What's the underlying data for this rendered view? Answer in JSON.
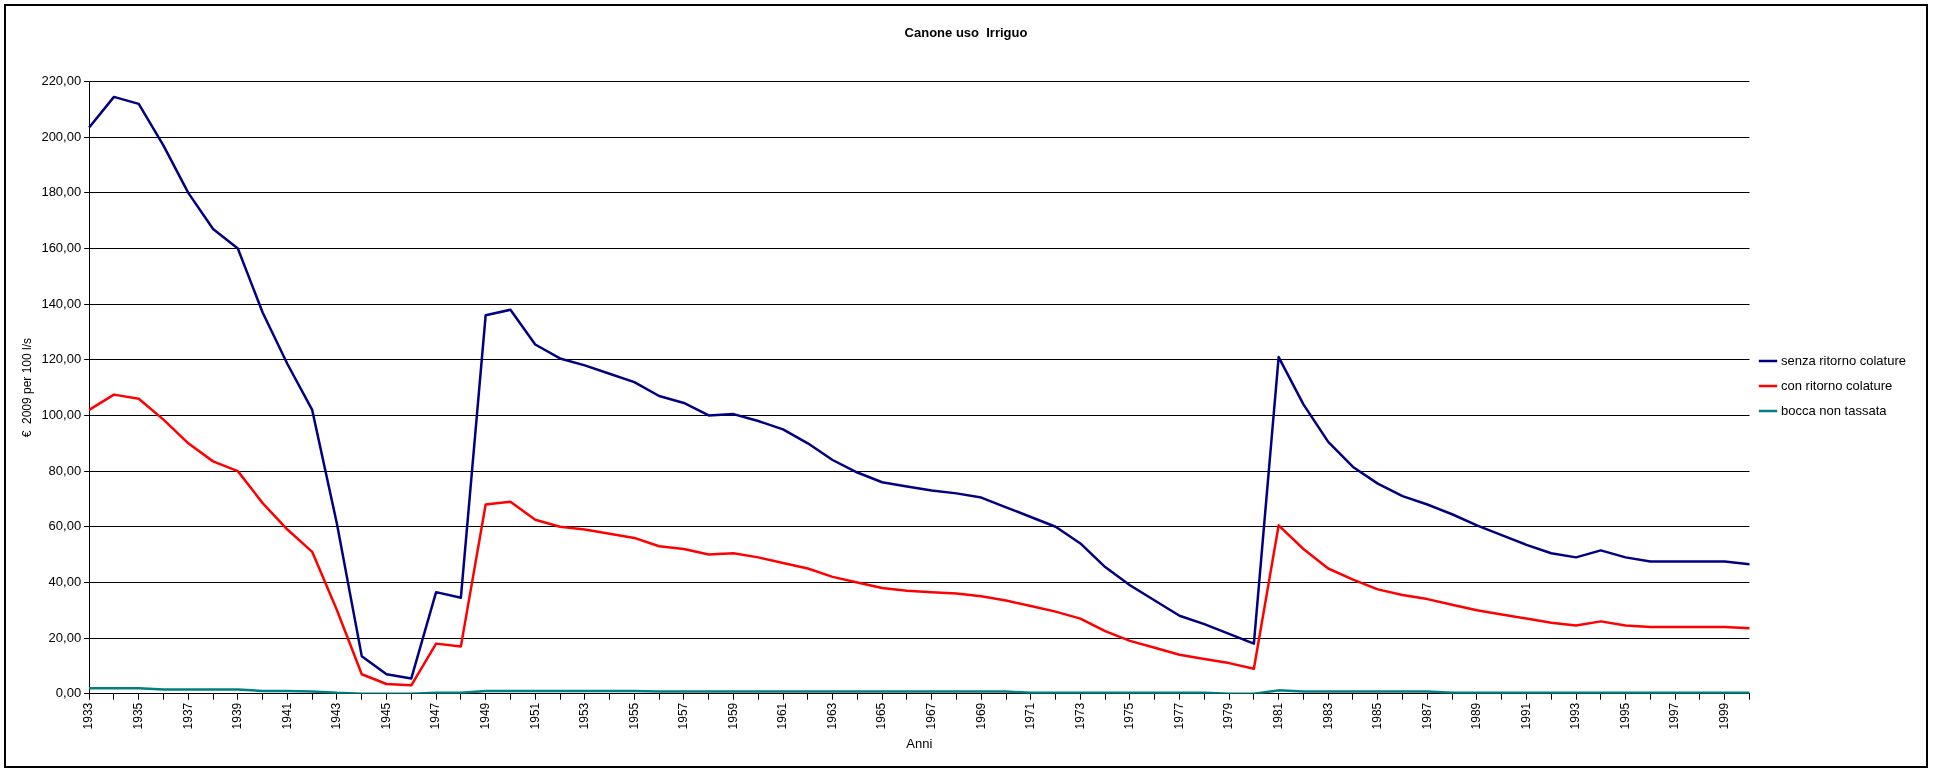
{
  "chart_data": {
    "type": "line",
    "title": "Canone uso  Irriguo",
    "xlabel": "Anni",
    "ylabel": "€  2009 per 100 l/s",
    "categories": [
      "1933",
      null,
      "1935",
      null,
      "1937",
      null,
      "1939",
      null,
      "1941",
      null,
      "1943",
      null,
      "1945",
      null,
      "1947",
      null,
      "1949",
      null,
      "1951",
      null,
      "1953",
      null,
      "1955",
      null,
      "1957",
      null,
      "1959",
      null,
      "1961",
      null,
      "1963",
      null,
      "1965",
      null,
      "1967",
      null,
      "1969",
      null,
      "1971",
      null,
      "1973",
      null,
      "1975",
      null,
      "1977",
      null,
      "1979",
      null,
      "1981",
      null,
      "1983",
      null,
      "1985",
      null,
      "1987",
      null,
      "1989",
      null,
      "1991",
      null,
      "1993",
      null,
      "1995",
      null,
      "1997",
      null,
      "1999",
      null
    ],
    "series": [
      {
        "name": "senza ritorno colature",
        "color": "#000080",
        "values": [
          203.5,
          214.5,
          212,
          197,
          180,
          167,
          160,
          137,
          118.5,
          102,
          61,
          13.5,
          7,
          5.5,
          36.5,
          34.5,
          136,
          138,
          125.5,
          120.5,
          118,
          115,
          112,
          107,
          104.5,
          100,
          100.5,
          98,
          95,
          90,
          84,
          79.5,
          76,
          74.5,
          73,
          72,
          70.5,
          67,
          63.5,
          60,
          54,
          45.5,
          39,
          33.5,
          28,
          25,
          21.5,
          18,
          121,
          104,
          90.5,
          81.5,
          75.5,
          71,
          68,
          64.5,
          60.5,
          57,
          53.5,
          50.5,
          49,
          51.5,
          49,
          47.5,
          47.5,
          47.5,
          47.5,
          46.5
        ]
      },
      {
        "name": "con ritorno colature",
        "color": "#ff0000",
        "values": [
          102,
          107.5,
          106,
          98.5,
          90,
          83.5,
          80,
          68.5,
          59,
          51,
          30,
          7,
          3.5,
          3,
          18,
          17,
          68,
          69,
          62.5,
          60,
          59,
          57.5,
          56,
          53,
          52,
          50,
          50.5,
          49,
          47,
          45,
          42,
          40,
          38,
          37,
          36.5,
          36,
          35,
          33.5,
          31.5,
          29.5,
          27,
          22.5,
          19,
          16.5,
          14,
          12.5,
          11,
          9,
          60.5,
          52,
          45,
          41,
          37.5,
          35.5,
          34,
          32,
          30,
          28.5,
          27,
          25.5,
          24.5,
          26,
          24.5,
          24,
          24,
          24,
          24,
          23.5
        ]
      },
      {
        "name": "bocca non tassata",
        "color": "#008080",
        "values": [
          2,
          2,
          2,
          1.5,
          1.5,
          1.5,
          1.5,
          1,
          1,
          0.8,
          0.3,
          0,
          0,
          0,
          0.3,
          0.3,
          1,
          1,
          1,
          1,
          1,
          1,
          1,
          0.8,
          0.8,
          0.8,
          0.8,
          0.8,
          0.8,
          0.8,
          0.8,
          0.8,
          0.8,
          0.8,
          0.8,
          0.8,
          0.8,
          0.8,
          0.3,
          0.3,
          0.3,
          0.3,
          0.3,
          0.3,
          0.3,
          0.3,
          0,
          0,
          1.2,
          0.8,
          0.8,
          0.8,
          0.8,
          0.8,
          0.8,
          0.3,
          0.3,
          0.3,
          0.3,
          0.3,
          0.3,
          0.3,
          0.3,
          0.3,
          0.3,
          0.3,
          0.3,
          0.3
        ]
      }
    ],
    "ylim": [
      0,
      220
    ],
    "yticks": [
      {
        "value": 0,
        "label": "0,00"
      },
      {
        "value": 20,
        "label": "20,00"
      },
      {
        "value": 40,
        "label": "40,00"
      },
      {
        "value": 60,
        "label": "60,00"
      },
      {
        "value": 80,
        "label": "80,00"
      },
      {
        "value": 100,
        "label": "100,00"
      },
      {
        "value": 120,
        "label": "120,00"
      },
      {
        "value": 140,
        "label": "140,00"
      },
      {
        "value": 160,
        "label": "160,00"
      },
      {
        "value": 180,
        "label": "180,00"
      },
      {
        "value": 200,
        "label": "200,00"
      },
      {
        "value": 220,
        "label": "220,00"
      }
    ],
    "grid": "y",
    "legend": "right",
    "marker": "none",
    "line_style": "solid"
  }
}
